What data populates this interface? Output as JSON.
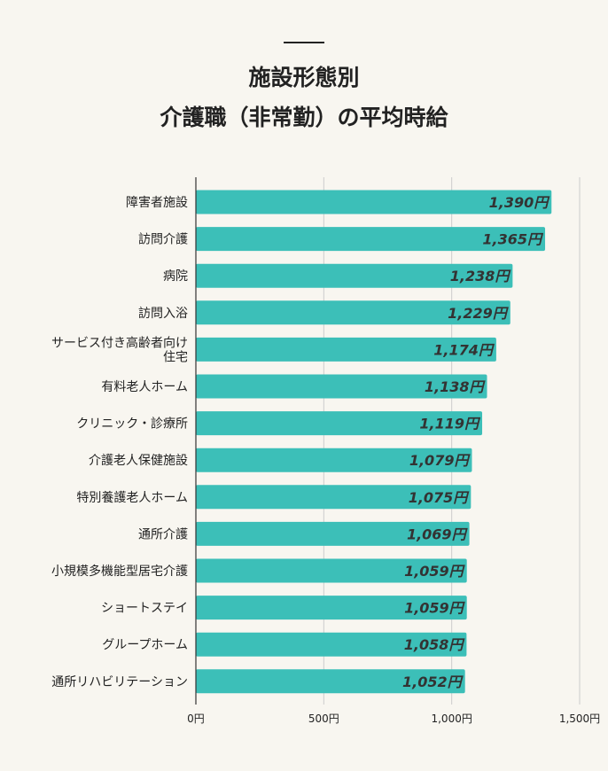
{
  "chart_data": {
    "type": "bar",
    "orientation": "horizontal",
    "title": [
      "施設形態別",
      "介護職（非常勤）の平均時給"
    ],
    "categories": [
      "障害者施設",
      "訪問介護",
      "病院",
      "訪問入浴",
      "サービス付き高齢者向け\n住宅",
      "有料老人ホーム",
      "クリニック・診療所",
      "介護老人保健施設",
      "特別養護老人ホーム",
      "通所介護",
      "小規模多機能型居宅介護",
      "ショートステイ",
      "グループホーム",
      "通所リハビリテーション"
    ],
    "values": [
      1390,
      1365,
      1238,
      1229,
      1174,
      1138,
      1119,
      1079,
      1075,
      1069,
      1059,
      1059,
      1058,
      1052
    ],
    "data_labels": [
      "1,390円",
      "1,365円",
      "1,238円",
      "1,229円",
      "1,174円",
      "1,138円",
      "1,119円",
      "1,079円",
      "1,075円",
      "1,069円",
      "1,059円",
      "1,059円",
      "1,058円",
      "1,052円"
    ],
    "xlim": [
      0,
      1500
    ],
    "xticks": [
      0,
      500,
      1000,
      1500
    ],
    "xtick_labels": [
      "0円",
      "500円",
      "1,000円",
      "1,500円"
    ],
    "grid": true,
    "colors": {
      "bar": "#3cbfb8",
      "background": "#f8f6f0",
      "grid": "#cccccc",
      "text": "#222222"
    }
  }
}
